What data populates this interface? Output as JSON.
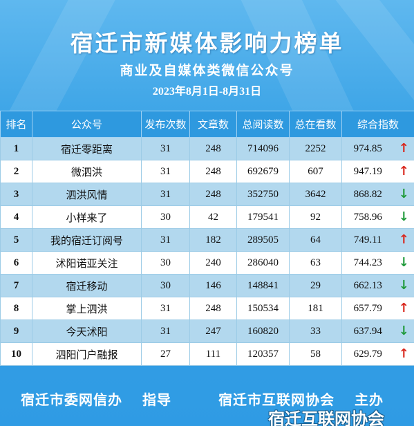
{
  "header": {
    "title": "宿迁市新媒体影响力榜单",
    "subtitle": "商业及自媒体类微信公众号",
    "date_range": "2023年8月1日-8月31日"
  },
  "table": {
    "columns": [
      "排名",
      "公众号",
      "发布次数",
      "文章数",
      "总阅读数",
      "总在看数",
      "综合指数"
    ],
    "rows": [
      {
        "rank": "1",
        "name": "宿迁零距离",
        "posts": "31",
        "articles": "248",
        "reads": "714096",
        "likes": "2252",
        "score": "974.85",
        "trend": "↑",
        "trend_dir": "up"
      },
      {
        "rank": "2",
        "name": "微泗洪",
        "posts": "31",
        "articles": "248",
        "reads": "692679",
        "likes": "607",
        "score": "947.19",
        "trend": "↑",
        "trend_dir": "up"
      },
      {
        "rank": "3",
        "name": "泗洪风情",
        "posts": "31",
        "articles": "248",
        "reads": "352750",
        "likes": "3642",
        "score": "868.82",
        "trend": "↓",
        "trend_dir": "down"
      },
      {
        "rank": "4",
        "name": "小样来了",
        "posts": "30",
        "articles": "42",
        "reads": "179541",
        "likes": "92",
        "score": "758.96",
        "trend": "↓",
        "trend_dir": "down"
      },
      {
        "rank": "5",
        "name": "我的宿迁订阅号",
        "posts": "31",
        "articles": "182",
        "reads": "289505",
        "likes": "64",
        "score": "749.11",
        "trend": "↑",
        "trend_dir": "up"
      },
      {
        "rank": "6",
        "name": "沭阳诺亚关注",
        "posts": "30",
        "articles": "240",
        "reads": "286040",
        "likes": "63",
        "score": "744.23",
        "trend": "↓",
        "trend_dir": "down"
      },
      {
        "rank": "7",
        "name": "宿迁移动",
        "posts": "30",
        "articles": "146",
        "reads": "148841",
        "likes": "29",
        "score": "662.13",
        "trend": "↓",
        "trend_dir": "down"
      },
      {
        "rank": "8",
        "name": "掌上泗洪",
        "posts": "31",
        "articles": "248",
        "reads": "150534",
        "likes": "181",
        "score": "657.79",
        "trend": "↑",
        "trend_dir": "up"
      },
      {
        "rank": "9",
        "name": "今天沭阳",
        "posts": "31",
        "articles": "247",
        "reads": "160820",
        "likes": "33",
        "score": "637.94",
        "trend": "↓",
        "trend_dir": "down"
      },
      {
        "rank": "10",
        "name": "泗阳门户融报",
        "posts": "27",
        "articles": "111",
        "reads": "120357",
        "likes": "58",
        "score": "629.79",
        "trend": "↑",
        "trend_dir": "up"
      }
    ]
  },
  "footer": {
    "guide": "宿迁市委网信办　 指导",
    "host": "宿迁市互联网协会　 主办",
    "watermark": "宿迁互联网协会"
  },
  "colors": {
    "background": "#3aa3e6",
    "header_row": "#2e99df",
    "row_alt": "#b2d8ee",
    "up_arrow": "#d9261c",
    "down_arrow": "#1f9a3a"
  }
}
